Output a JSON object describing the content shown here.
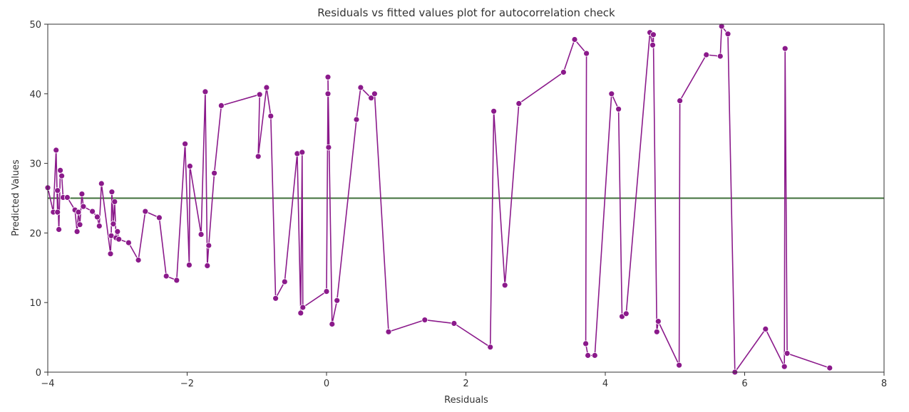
{
  "chart_data": {
    "type": "line",
    "title": "Residuals vs fitted values plot for autocorrelation check",
    "xlabel": "Residuals",
    "ylabel": "Predicted Values",
    "xlim": [
      -4,
      8
    ],
    "ylim": [
      0,
      50
    ],
    "x_ticks": [
      -4,
      -2,
      0,
      2,
      4,
      6,
      8
    ],
    "y_ticks": [
      0,
      10,
      20,
      30,
      40,
      50
    ],
    "x_tick_labels": [
      "−4",
      "−2",
      "0",
      "2",
      "4",
      "6",
      "8"
    ],
    "y_tick_labels": [
      "0",
      "10",
      "20",
      "30",
      "40",
      "50"
    ],
    "grid": false,
    "reference_line": {
      "y": 25,
      "color": "#3f6f3a"
    },
    "series": [
      {
        "color": "#8b1a8b",
        "marker": "circle",
        "x": [
          -4.0,
          -3.92,
          -3.88,
          -3.86,
          -3.86,
          -3.84,
          -3.82,
          -3.8,
          -3.78,
          -3.72,
          -3.61,
          -3.58,
          -3.56,
          -3.54,
          -3.51,
          -3.49,
          -3.36,
          -3.29,
          -3.26,
          -3.23,
          -3.1,
          -3.09,
          -3.08,
          -3.06,
          -3.04,
          -3.02,
          -3.0,
          -2.98,
          -2.84,
          -2.7,
          -2.6,
          -2.4,
          -2.3,
          -2.15,
          -2.03,
          -1.97,
          -1.96,
          -1.8,
          -1.74,
          -1.71,
          -1.69,
          -1.61,
          -1.51,
          -0.96,
          -0.98,
          -0.86,
          -0.8,
          -0.73,
          -0.6,
          -0.42,
          -0.37,
          -0.35,
          -0.34,
          0.0,
          0.02,
          0.03,
          0.02,
          0.08,
          0.15,
          0.43,
          0.49,
          0.64,
          0.69,
          0.89,
          1.41,
          1.83,
          2.35,
          2.4,
          2.56,
          2.76,
          3.4,
          3.56,
          3.73,
          3.72,
          3.75,
          3.85,
          4.09,
          4.19,
          4.24,
          4.3,
          4.64,
          4.68,
          4.69,
          4.74,
          4.76,
          5.06,
          5.07,
          5.45,
          5.65,
          5.67,
          5.76,
          5.86,
          6.3,
          6.57,
          6.58,
          6.61,
          7.22
        ],
        "y": [
          26.5,
          23.0,
          31.9,
          23.0,
          26.1,
          20.5,
          29.0,
          28.2,
          25.1,
          25.1,
          23.3,
          20.2,
          23.0,
          21.2,
          25.6,
          23.8,
          23.1,
          22.3,
          21.0,
          27.1,
          17.0,
          19.6,
          25.9,
          21.3,
          24.5,
          19.3,
          20.2,
          19.1,
          18.6,
          16.1,
          23.1,
          22.2,
          13.8,
          13.2,
          32.8,
          15.4,
          29.6,
          19.8,
          40.3,
          15.3,
          18.2,
          28.6,
          38.3,
          39.9,
          31.0,
          40.9,
          36.8,
          10.6,
          13.0,
          31.4,
          8.5,
          31.6,
          9.3,
          11.6,
          40.0,
          32.3,
          42.4,
          6.9,
          10.3,
          36.3,
          40.9,
          39.4,
          40.0,
          5.8,
          7.5,
          7.0,
          3.6,
          37.5,
          12.5,
          38.6,
          43.1,
          47.8,
          45.8,
          4.1,
          2.4,
          2.4,
          40.0,
          37.8,
          8.0,
          8.4,
          48.8,
          47.0,
          48.5,
          5.8,
          7.3,
          1.0,
          39.0,
          45.6,
          45.4,
          49.7,
          48.6,
          0.0,
          6.2,
          0.8,
          46.5,
          2.7,
          0.6
        ]
      }
    ]
  }
}
